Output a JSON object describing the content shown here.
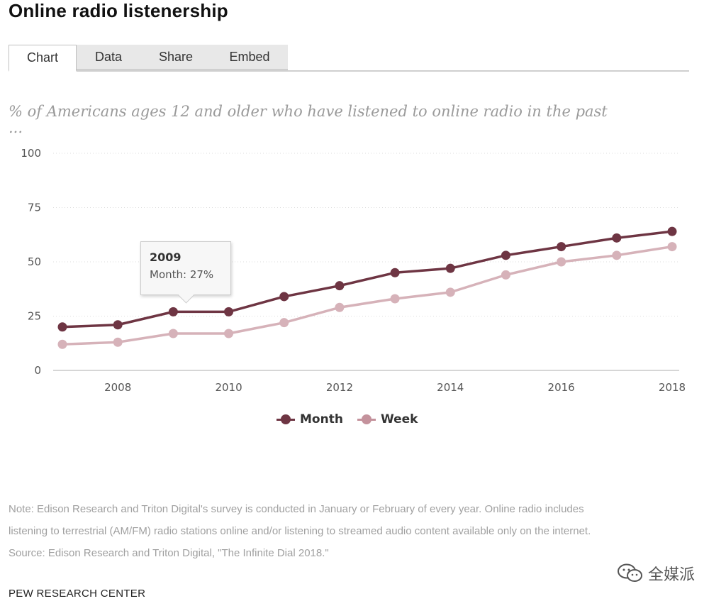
{
  "title": "Online radio listenership",
  "tabs": [
    {
      "label": "Chart",
      "active": true
    },
    {
      "label": "Data",
      "active": false
    },
    {
      "label": "Share",
      "active": false
    },
    {
      "label": "Embed",
      "active": false
    }
  ],
  "chart_data": {
    "type": "line",
    "subtitle_line1": "% of Americans ages 12 and older who have listened to online radio in the past",
    "subtitle_line2": "...",
    "x": [
      2007,
      2008,
      2009,
      2010,
      2011,
      2012,
      2013,
      2014,
      2015,
      2016,
      2017,
      2018
    ],
    "x_ticks": [
      2008,
      2010,
      2012,
      2014,
      2016,
      2018
    ],
    "y_ticks": [
      0,
      25,
      50,
      75,
      100
    ],
    "ylim": [
      0,
      100
    ],
    "series": [
      {
        "name": "Month",
        "color": "#6e3543",
        "values": [
          20,
          21,
          27,
          27,
          34,
          39,
          45,
          47,
          53,
          57,
          61,
          64
        ]
      },
      {
        "name": "Week",
        "color": "#d6b2b9",
        "values": [
          12,
          13,
          17,
          17,
          22,
          29,
          33,
          36,
          44,
          50,
          53,
          57
        ]
      }
    ],
    "grid": "dotted horizontal",
    "legend_position": "bottom-center",
    "tooltip": {
      "year": "2009",
      "text": "Month: 27%"
    }
  },
  "legend": {
    "month_label": "Month",
    "week_label": "Week",
    "month_color": "#6e3543",
    "week_color": "#c4929c"
  },
  "note_line1": "Note: Edison Research and Triton Digital's survey is conducted in January or February of every year. Online radio includes",
  "note_line2": "listening to terrestrial (AM/FM) radio stations online and/or listening to streamed audio content available only on the internet.",
  "source": "Source: Edison Research and Triton Digital, \"The Infinite Dial 2018.\"",
  "footer": "PEW RESEARCH CENTER",
  "watermark": {
    "text": "全媒派",
    "icon": "wechat-icon"
  }
}
